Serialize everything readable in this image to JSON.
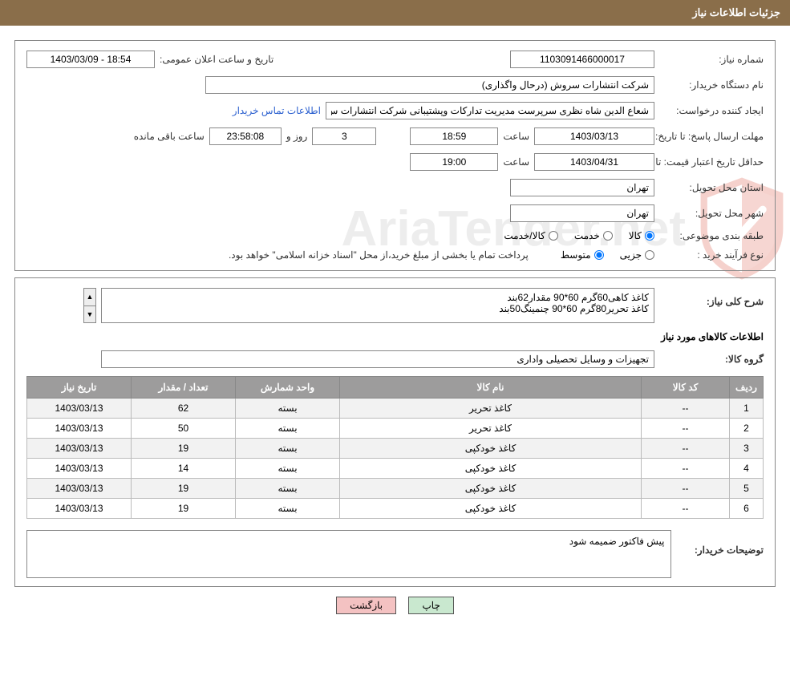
{
  "header": {
    "title": "جزئیات اطلاعات نیاز"
  },
  "fields": {
    "need_no_label": "شماره نیاز:",
    "need_no": "1103091466000017",
    "announce_label": "تاریخ و ساعت اعلان عمومی:",
    "announce_value": "1403/03/09 - 18:54",
    "buyer_org_label": "نام دستگاه خریدار:",
    "buyer_org": "شرکت انتشارات سروش (درحال واگذاری)",
    "requester_label": "ایجاد کننده درخواست:",
    "requester": "شعاع الدین شاه نظری سرپرست مدیریت تدارکات وپشتیبانی شرکت انتشارات س",
    "contact_link": "اطلاعات تماس خریدار",
    "reply_deadline_label": "مهلت ارسال پاسخ: تا تاریخ:",
    "reply_date": "1403/03/13",
    "time_label": "ساعت",
    "reply_time": "18:59",
    "days_left": "3",
    "days_and": "روز و",
    "time_left": "23:58:08",
    "time_left_suffix": "ساعت باقی مانده",
    "price_validity_label": "حداقل تاریخ اعتبار قیمت: تا تاریخ:",
    "price_date": "1403/04/31",
    "price_time": "19:00",
    "province_label": "استان محل تحویل:",
    "province": "تهران",
    "city_label": "شهر محل تحویل:",
    "city": "تهران",
    "category_label": "طبقه بندی موضوعی:",
    "cat_goods": "کالا",
    "cat_service": "خدمت",
    "cat_goods_service": "کالا/خدمت",
    "purchase_type_label": "نوع فرآیند خرید :",
    "pt_partial": "جزیی",
    "pt_medium": "متوسط",
    "purchase_note": "پرداخت تمام یا بخشی از مبلغ خرید،از محل \"اسناد خزانه اسلامی\" خواهد بود."
  },
  "desc": {
    "label": "شرح كلی نیاز:",
    "text": "کاغذ کاهی60گرم 60*90 مقدار62بند\nکاغذ تحریر80گرم 60*90 چنمینگ50بند"
  },
  "goods_section_title": "اطلاعات كالاهای مورد نیاز",
  "goods_group_label": "گروه کالا:",
  "goods_group": "تجهیزات و وسایل تحصیلی واداری",
  "table": {
    "headers": [
      "ردیف",
      "کد کالا",
      "نام کالا",
      "واحد شمارش",
      "تعداد / مقدار",
      "تاریخ نیاز"
    ],
    "rows": [
      [
        "1",
        "--",
        "کاغذ تحریر",
        "بسته",
        "62",
        "1403/03/13"
      ],
      [
        "2",
        "--",
        "کاغذ تحریر",
        "بسته",
        "50",
        "1403/03/13"
      ],
      [
        "3",
        "--",
        "کاغذ خودکپی",
        "بسته",
        "19",
        "1403/03/13"
      ],
      [
        "4",
        "--",
        "کاغذ خودکپی",
        "بسته",
        "14",
        "1403/03/13"
      ],
      [
        "5",
        "--",
        "کاغذ خودکپی",
        "بسته",
        "19",
        "1403/03/13"
      ],
      [
        "6",
        "--",
        "کاغذ خودکپی",
        "بسته",
        "19",
        "1403/03/13"
      ]
    ],
    "col_widths": [
      "42px",
      "110px",
      "auto",
      "130px",
      "130px",
      "130px"
    ]
  },
  "buyer_notes_label": "توضیحات خریدار:",
  "buyer_notes": "پیش فاکتور ضمیمه شود",
  "buttons": {
    "print": "چاپ",
    "back": "بازگشت"
  },
  "watermark_text": "AriaTender.net",
  "colors": {
    "header_bg": "#8a6e4a",
    "th_bg": "#9d9c9c",
    "link": "#2a5fcf",
    "btn_print": "#c9e8cf",
    "btn_back": "#f4c2c2",
    "shield_stroke": "#d94a3a"
  }
}
